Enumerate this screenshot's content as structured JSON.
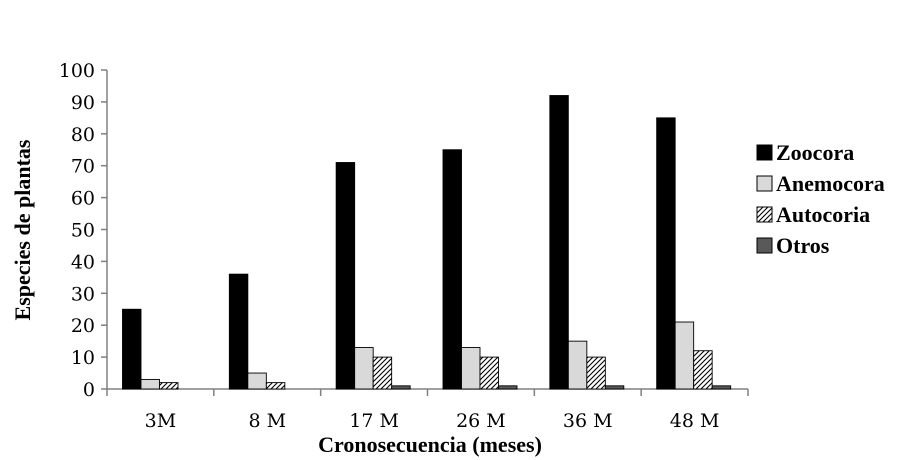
{
  "chart_data": {
    "type": "bar",
    "xlabel": "Cronosecuencia (meses)",
    "ylabel": "Especies de plantas",
    "categories": [
      "3M",
      "8 M",
      "17 M",
      "26 M",
      "36 M",
      "48 M"
    ],
    "ylim": [
      0,
      100
    ],
    "yticks": [
      0,
      10,
      20,
      30,
      40,
      50,
      60,
      70,
      80,
      90,
      100
    ],
    "grid": false,
    "legend_position": "right",
    "series": [
      {
        "name": "Zoocora",
        "values": [
          25,
          36,
          71,
          75,
          92,
          85
        ],
        "fill": "#000000",
        "pattern": "solid"
      },
      {
        "name": "Anemocora",
        "values": [
          3,
          5,
          13,
          13,
          15,
          21
        ],
        "fill": "#d9d9d9",
        "pattern": "solid"
      },
      {
        "name": "Autocoria",
        "values": [
          2,
          2,
          10,
          10,
          10,
          12
        ],
        "fill": "#ffffff",
        "pattern": "diagonal-hatch"
      },
      {
        "name": "Otros",
        "values": [
          0,
          0,
          1,
          1,
          1,
          1
        ],
        "fill": "#595959",
        "pattern": "solid"
      }
    ]
  }
}
